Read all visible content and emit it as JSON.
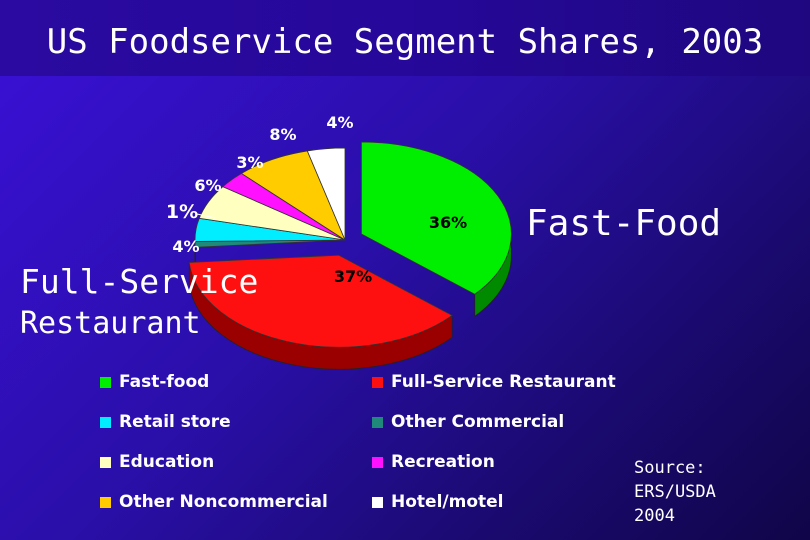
{
  "title": "US Foodservice Segment Shares, 2003",
  "callouts": {
    "fast_food": "Fast-Food",
    "full_service_line1": "Full-Service",
    "full_service_line2": "Restaurant"
  },
  "source": {
    "line1": "Source:",
    "line2": "ERS/USDA",
    "line3": "2004"
  },
  "chart_data": {
    "type": "pie",
    "title": "US Foodservice Segment Shares, 2003",
    "legend_position": "bottom",
    "slices": [
      {
        "name": "Fast-food",
        "value": 36,
        "label": "36%",
        "color": "#00ee00",
        "side_color": "#008a00"
      },
      {
        "name": "Full-Service Restaurant",
        "value": 37,
        "label": "37%",
        "color": "#ff1010",
        "side_color": "#9a0000"
      },
      {
        "name": "Other Commercial",
        "value": 1,
        "label": "1%",
        "color": "#1f8a7a",
        "side_color": "#0d4d44"
      },
      {
        "name": "Retail store",
        "value": 4,
        "label": "4%",
        "color": "#00eeff",
        "side_color": "#0090a0"
      },
      {
        "name": "Education",
        "value": 6,
        "label": "6%",
        "color": "#ffffc0",
        "side_color": "#b8b880"
      },
      {
        "name": "Recreation",
        "value": 3,
        "label": "3%",
        "color": "#ff10ff",
        "side_color": "#a000a0"
      },
      {
        "name": "Other Noncommercial",
        "value": 8,
        "label": "8%",
        "color": "#ffcc00",
        "side_color": "#b08800"
      },
      {
        "name": "Hotel/motel",
        "value": 4,
        "label": "4%",
        "color": "#ffffff",
        "side_color": "#c0c0c0"
      }
    ],
    "legend": [
      {
        "name": "Fast-food",
        "color": "#00ee00"
      },
      {
        "name": "Full-Service Restaurant",
        "color": "#ff1010"
      },
      {
        "name": "Retail store",
        "color": "#00eeff"
      },
      {
        "name": "Other Commercial",
        "color": "#1f8a7a"
      },
      {
        "name": "Education",
        "color": "#ffffc0"
      },
      {
        "name": "Recreation",
        "color": "#ff10ff"
      },
      {
        "name": "Other Noncommercial",
        "color": "#ffcc00"
      },
      {
        "name": "Hotel/motel",
        "color": "#ffffff"
      }
    ]
  }
}
